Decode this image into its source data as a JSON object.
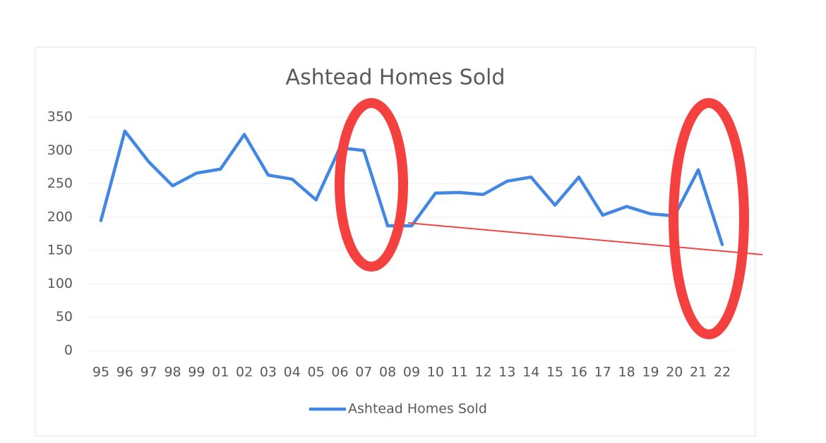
{
  "chart_data": {
    "type": "line",
    "title": "Ashtead Homes Sold",
    "categories": [
      "95",
      "96",
      "97",
      "98",
      "99",
      "01",
      "02",
      "03",
      "04",
      "05",
      "06",
      "07",
      "08",
      "09",
      "10",
      "11",
      "12",
      "13",
      "14",
      "15",
      "16",
      "17",
      "18",
      "19",
      "20",
      "21",
      "22"
    ],
    "series": [
      {
        "name": "Ashtead Homes Sold",
        "color": "#4287e4",
        "values": [
          195,
          329,
          283,
          247,
          266,
          272,
          324,
          263,
          257,
          226,
          304,
          300,
          187,
          187,
          236,
          237,
          234,
          254,
          260,
          218,
          260,
          203,
          216,
          205,
          202,
          271,
          159
        ]
      }
    ],
    "ylim": [
      0,
      350
    ],
    "yticks": [
      0,
      50,
      100,
      150,
      200,
      250,
      300,
      350
    ],
    "grid": true,
    "legend": "bottom"
  }
}
